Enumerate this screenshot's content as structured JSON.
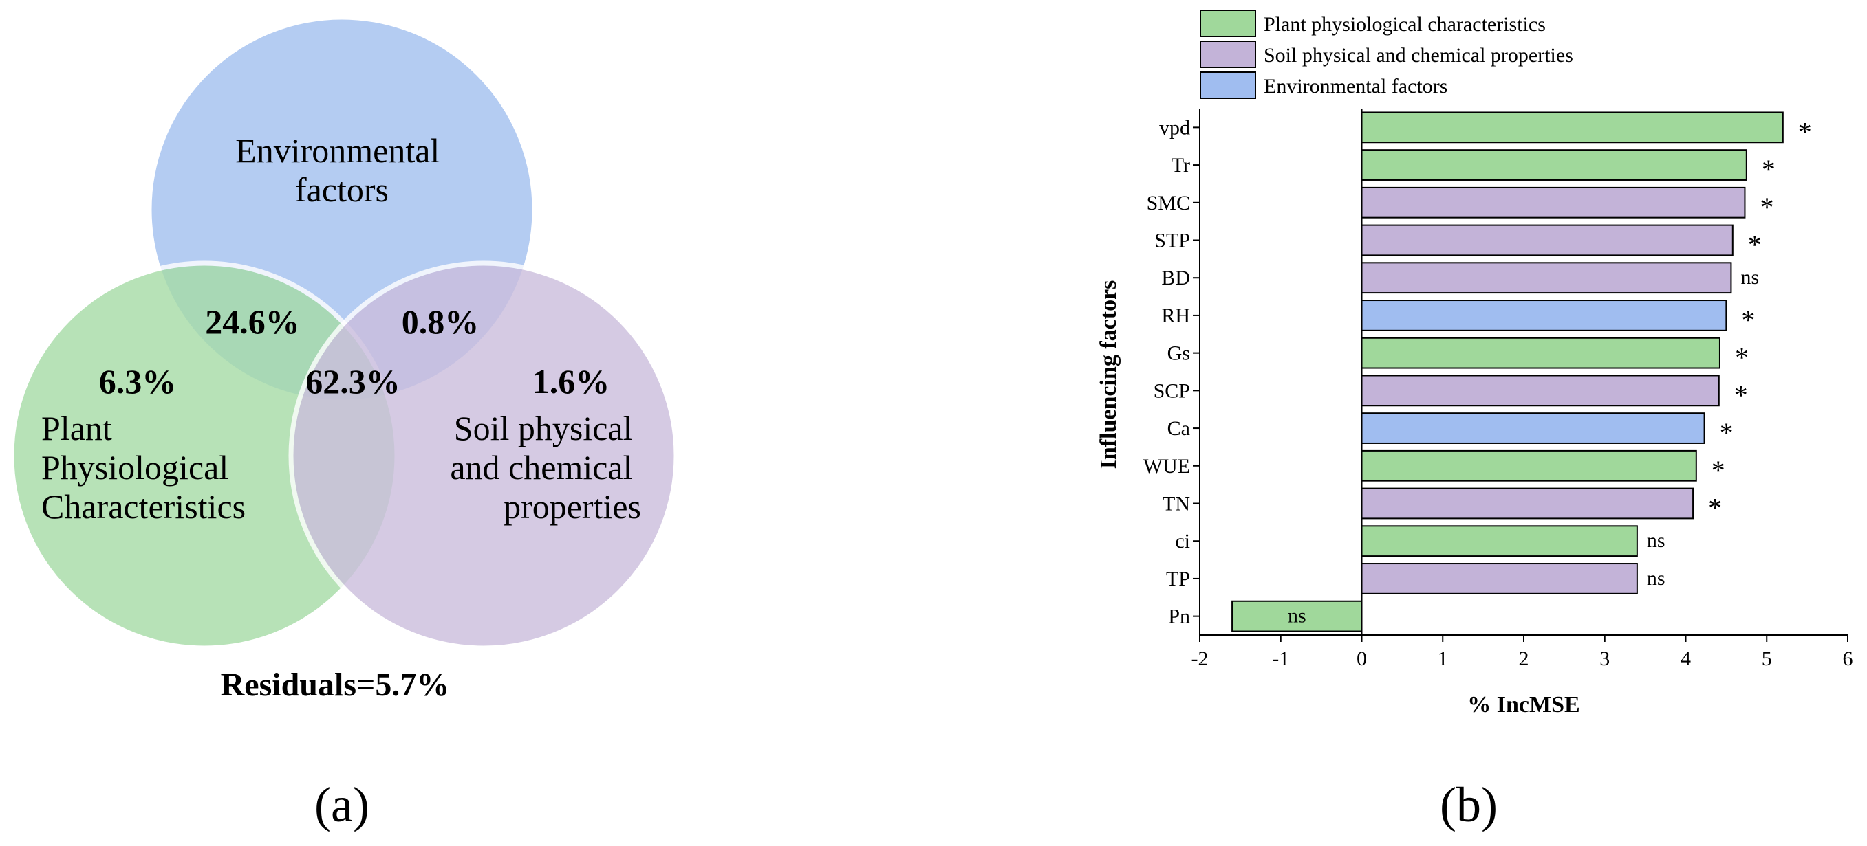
{
  "venn": {
    "circles": {
      "environmental": {
        "label_lines": [
          "Environmental",
          "factors"
        ],
        "color": "#a8c4f0"
      },
      "plant": {
        "label_lines": [
          "Plant",
          "Physiological",
          "Characteristics"
        ],
        "color": "#a6dca6"
      },
      "soil": {
        "label_lines": [
          "Soil physical",
          "and chemical",
          "properties"
        ],
        "color": "#cbbedd"
      }
    },
    "percentages": {
      "plant_only": "6.3%",
      "soil_only": "1.6%",
      "plant_env": "24.6%",
      "env_soil": "0.8%",
      "all_three": "62.3%"
    },
    "residuals": "Residuals=5.7%",
    "panel_label": "(a)"
  },
  "bar_panel_label": "(b)",
  "chart_data": {
    "type": "bar",
    "orientation": "horizontal",
    "categories": [
      "vpd",
      "Tr",
      "SMC",
      "STP",
      "BD",
      "RH",
      "Gs",
      "SCP",
      "Ca",
      "WUE",
      "TN",
      "ci",
      "TP",
      "Pn"
    ],
    "values": [
      5.2,
      4.75,
      4.73,
      4.58,
      4.56,
      4.5,
      4.42,
      4.41,
      4.23,
      4.13,
      4.09,
      3.4,
      3.4,
      -1.6
    ],
    "groups": [
      "Plant physiological characteristics",
      "Plant physiological characteristics",
      "Soil physical and chemical properties",
      "Soil physical and chemical properties",
      "Soil physical and chemical properties",
      "Environmental factors",
      "Plant physiological characteristics",
      "Soil physical and chemical properties",
      "Environmental factors",
      "Plant physiological characteristics",
      "Soil physical and chemical properties",
      "Plant physiological characteristics",
      "Soil physical and chemical properties",
      "Plant physiological characteristics"
    ],
    "significance": [
      "*",
      "*",
      "*",
      "*",
      "ns",
      "*",
      "*",
      "*",
      "*",
      "*",
      "*",
      "ns",
      "ns",
      "ns"
    ],
    "xlabel": "% IncMSE",
    "ylabel": "Influencing factors",
    "xlim": [
      -2,
      6
    ],
    "xticks": [
      "-2",
      "-1",
      "0",
      "1",
      "2",
      "3",
      "4",
      "5",
      "6"
    ],
    "legend": [
      {
        "name": "Plant physiological characteristics",
        "color": "#a0d89b"
      },
      {
        "name": "Soil physical and chemical properties",
        "color": "#c3b3d8"
      },
      {
        "name": "Environmental factors",
        "color": "#a0bdf0"
      }
    ],
    "legend_position": "top-left"
  }
}
